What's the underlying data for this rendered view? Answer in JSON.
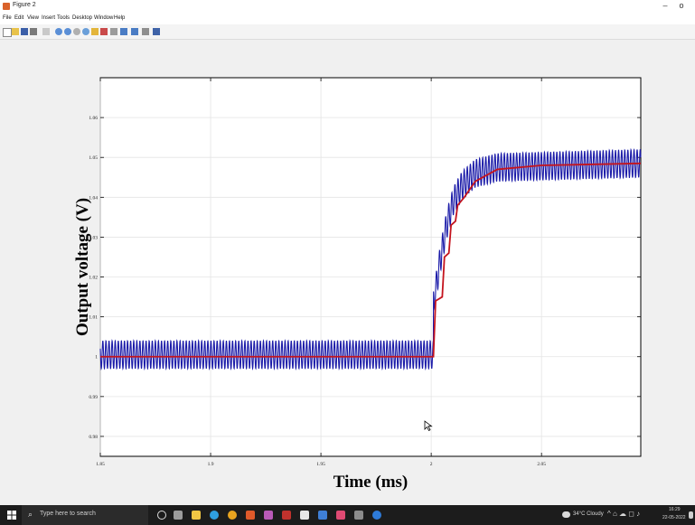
{
  "window": {
    "title": "Figure 2",
    "minimize_glyph": "–",
    "maximize_glyph": "o"
  },
  "menu": [
    "File",
    "Edit",
    "View",
    "Insert",
    "Tools",
    "Desktop",
    "Window",
    "Help"
  ],
  "toolbar_icons": [
    "new-figure-icon",
    "open-file-icon",
    "save-icon",
    "print-icon",
    "edit-plot-icon",
    "zoom-in-icon",
    "zoom-out-icon",
    "pan-icon",
    "rotate-3d-icon",
    "data-cursor-icon",
    "brush-icon",
    "link-plot-icon",
    "insert-colorbar-icon",
    "insert-legend-icon",
    "hide-plot-tools-icon",
    "show-plot-tools-icon"
  ],
  "chart_data": {
    "type": "line",
    "xlabel": "Time (ms)",
    "ylabel": "Output voltage (V)",
    "xlim": [
      1.85,
      2.095
    ],
    "ylim": [
      0.975,
      1.07
    ],
    "xticks": [
      1.85,
      1.9,
      1.95,
      2,
      2.05
    ],
    "xtick_labels": [
      "1.85",
      "1.9",
      "1.95",
      "2",
      "2.05"
    ],
    "yticks": [
      0.98,
      0.99,
      1,
      1.01,
      1.02,
      1.03,
      1.04,
      1.05,
      1.06
    ],
    "ytick_labels": [
      "0.98",
      "0.99",
      "1",
      "1.01",
      "1.02",
      "1.03",
      "1.04",
      "1.05",
      "1.06"
    ],
    "grid": true,
    "series": [
      {
        "color": "#1a1aa8",
        "description": "ripple",
        "segments": [
          {
            "x_start": 1.85,
            "x_end": 2.001,
            "center": 1.0005,
            "ripple_amplitude": 0.0035
          },
          {
            "x_start": 2.001,
            "x_end": 2.095,
            "steps": [
              [
                2.001,
                1.013
              ],
              [
                2.004,
                1.024
              ],
              [
                2.007,
                1.033
              ],
              [
                2.01,
                1.039
              ],
              [
                2.014,
                1.043
              ],
              [
                2.02,
                1.046
              ],
              [
                2.03,
                1.0475
              ],
              [
                2.095,
                1.0485
              ]
            ],
            "ripple_amplitude": 0.0035
          }
        ],
        "ripple_period_ms": 0.0014
      },
      {
        "color": "#c4141e",
        "description": "average",
        "points": [
          [
            1.85,
            1.0
          ],
          [
            2.001,
            1.0
          ],
          [
            2.002,
            1.014
          ],
          [
            2.005,
            1.015
          ],
          [
            2.006,
            1.025
          ],
          [
            2.008,
            1.026
          ],
          [
            2.009,
            1.033
          ],
          [
            2.011,
            1.034
          ],
          [
            2.012,
            1.038
          ],
          [
            2.015,
            1.04
          ],
          [
            2.02,
            1.044
          ],
          [
            2.03,
            1.047
          ],
          [
            2.05,
            1.048
          ],
          [
            2.095,
            1.0485
          ]
        ]
      }
    ]
  },
  "taskbar": {
    "search_placeholder": "Type here to search",
    "weather": "34°C Cloudy",
    "time": "16:29",
    "date": "22-05-2022"
  }
}
